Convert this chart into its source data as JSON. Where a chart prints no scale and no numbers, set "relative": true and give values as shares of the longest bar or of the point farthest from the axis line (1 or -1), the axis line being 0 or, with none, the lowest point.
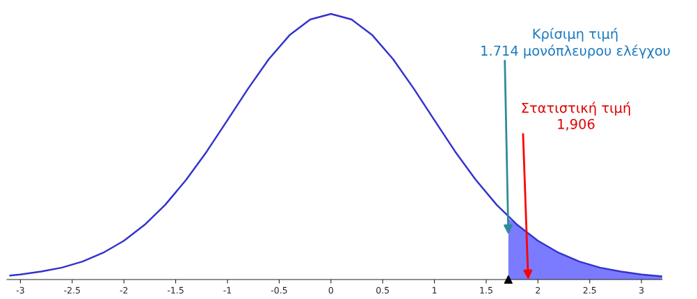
{
  "chart_data": {
    "type": "line",
    "relative": true,
    "xlim": [
      -3.13,
      3.2
    ],
    "xticks": [
      -3,
      -2.5,
      -2,
      -1.5,
      -1,
      -0.5,
      0,
      0.5,
      1,
      1.5,
      2,
      2.5,
      3
    ],
    "series": [
      {
        "color": "#3333cc",
        "x": [
          -3.1,
          -3.0,
          -2.8,
          -2.6,
          -2.4,
          -2.2,
          -2.0,
          -1.8,
          -1.6,
          -1.4,
          -1.2,
          -1.0,
          -0.8,
          -0.6,
          -0.4,
          -0.2,
          0,
          0.2,
          0.4,
          0.6,
          0.8,
          1.0,
          1.2,
          1.4,
          1.6,
          1.8,
          2.0,
          2.2,
          2.4,
          2.6,
          2.8,
          3.0,
          3.2
        ],
        "values": [
          0.015,
          0.019,
          0.03,
          0.045,
          0.068,
          0.101,
          0.146,
          0.206,
          0.282,
          0.375,
          0.482,
          0.6,
          0.719,
          0.83,
          0.92,
          0.979,
          1.0,
          0.979,
          0.92,
          0.83,
          0.719,
          0.6,
          0.482,
          0.375,
          0.282,
          0.206,
          0.146,
          0.101,
          0.068,
          0.045,
          0.03,
          0.019,
          0.012
        ]
      },
      {
        "type": "area",
        "color": "#7b7bff",
        "x": [
          1.714,
          1.8,
          2.0,
          2.2,
          2.4,
          2.6,
          2.8,
          3.0,
          3.2
        ],
        "values": [
          0.23,
          0.206,
          0.146,
          0.101,
          0.068,
          0.045,
          0.03,
          0.019,
          0.012
        ]
      },
      {
        "type": "scatter",
        "color": "#000000",
        "marker": "triangle",
        "x": [
          1.714
        ],
        "values": [
          0
        ]
      }
    ],
    "annotations": [
      {
        "text": "Κρίσιμη τιμή\n1.714 μονόπλευρου ελέγχου",
        "x": 1.714,
        "y": 0.17
      },
      {
        "text": "Στατιστική τιμή\n1,906",
        "x": 1.906,
        "y": 0
      }
    ]
  }
}
